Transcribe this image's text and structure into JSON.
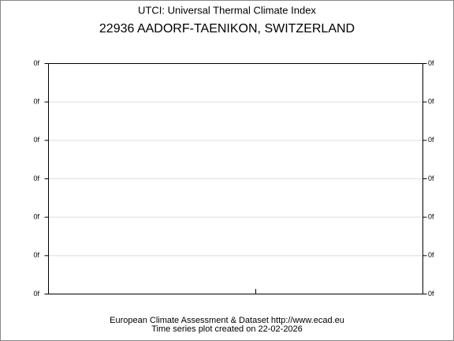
{
  "header": {
    "title": "UTCI: Universal Thermal Climate Index",
    "station": "22936 AADORF-TAENIKON, SWITZERLAND"
  },
  "y_axis": {
    "left_labels": [
      "0f",
      "0f",
      "0f",
      "0f",
      "0f",
      "0f",
      "0f"
    ],
    "right_labels": [
      "0f",
      "0f",
      "0f",
      "0f",
      "0f",
      "0f",
      "0f"
    ]
  },
  "footer": {
    "line1": "European Climate Assessment & Dataset  http://www.ecad.eu",
    "line2": "Time series plot created on 22-02-2026"
  }
}
